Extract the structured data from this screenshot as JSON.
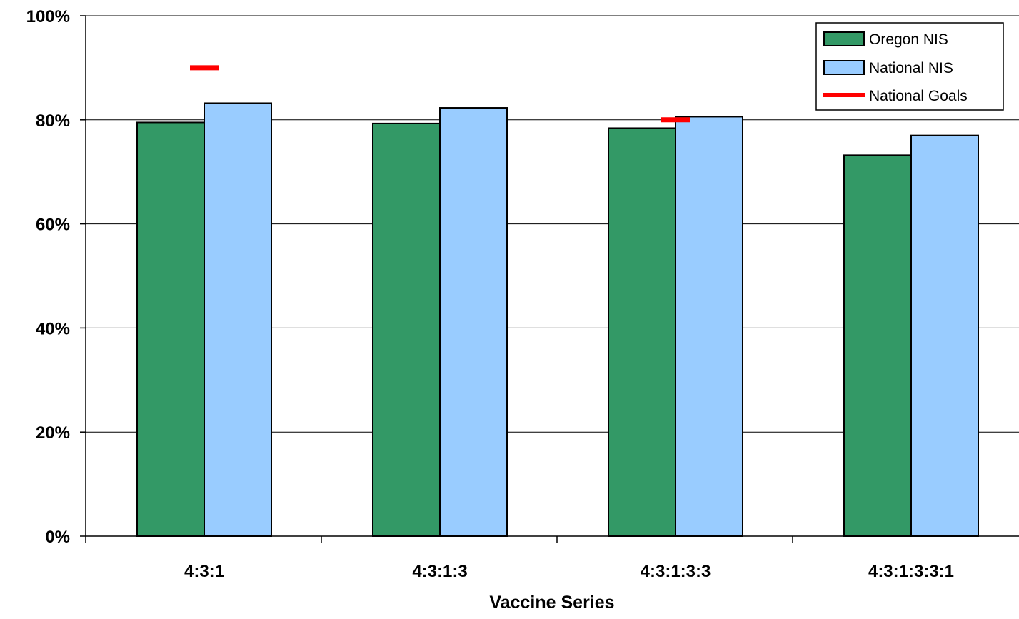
{
  "chart_data": {
    "type": "bar",
    "categories": [
      "4:3:1",
      "4:3:1:3",
      "4:3:1:3:3",
      "4:3:1:3:3:1"
    ],
    "series": [
      {
        "name": "Oregon NIS",
        "values": [
          79.5,
          79.3,
          78.4,
          73.2
        ],
        "color": "#339966"
      },
      {
        "name": "National NIS",
        "values": [
          83.2,
          82.3,
          80.6,
          77.0
        ],
        "color": "#99CCFF"
      }
    ],
    "goals": {
      "name": "National Goals",
      "values": [
        90,
        null,
        80,
        null
      ],
      "color": "#FF0000"
    },
    "xlabel": "Vaccine Series",
    "ylabel": "",
    "ylim": [
      0,
      100
    ],
    "yticks": [
      0,
      20,
      40,
      60,
      80,
      100
    ],
    "ytick_labels": [
      "0%",
      "20%",
      "40%",
      "60%",
      "80%",
      "100%"
    ],
    "grid": true,
    "legend_position": "top-right"
  }
}
